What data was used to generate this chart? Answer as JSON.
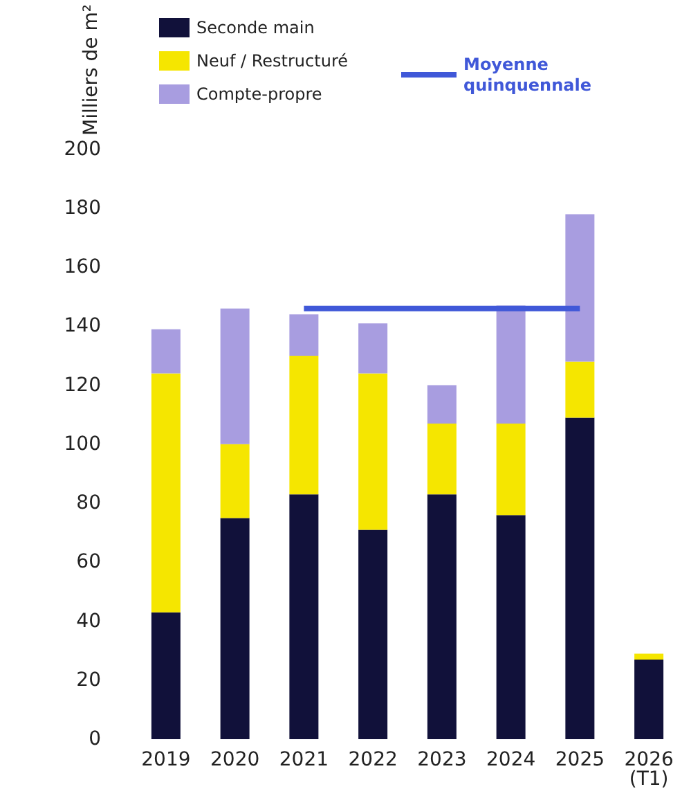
{
  "chart_data": {
    "type": "bar",
    "stacked": true,
    "ylabel": "Milliers de m²",
    "categories": [
      "2019",
      "2020",
      "2021",
      "2022",
      "2023",
      "2024",
      "2025",
      "2026\n(T1)"
    ],
    "series": [
      {
        "name": "Seconde main",
        "color": "#11113a",
        "values": [
          43,
          75,
          83,
          71,
          83,
          76,
          109,
          27
        ]
      },
      {
        "name": "Neuf / Restructuré",
        "color": "#f5e600",
        "values": [
          81,
          25,
          47,
          53,
          24,
          31,
          19,
          2
        ]
      },
      {
        "name": "Compte-propre",
        "color": "#a89de0",
        "values": [
          15,
          46,
          14,
          17,
          13,
          40,
          50,
          0
        ]
      },
      {
        "name": "Moyenne quinquennale",
        "type": "line",
        "color": "#4058d8",
        "values": [
          null,
          null,
          146,
          146,
          146,
          146,
          146,
          null
        ]
      }
    ],
    "ylim": [
      0,
      200
    ],
    "yticks": [
      0,
      20,
      40,
      60,
      80,
      100,
      120,
      140,
      160,
      180,
      200
    ],
    "grid": false,
    "legend": "top left",
    "marker": "none"
  }
}
